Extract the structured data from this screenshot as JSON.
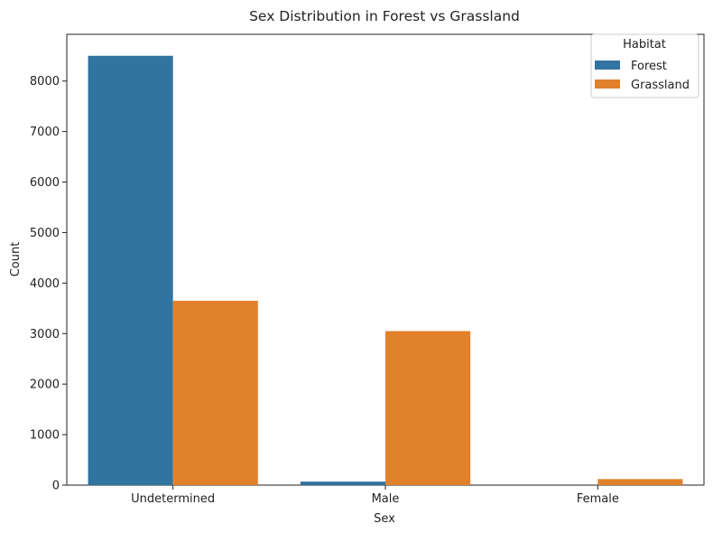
{
  "chart_data": {
    "type": "bar",
    "title": "Sex Distribution in Forest vs Grassland",
    "xlabel": "Sex",
    "ylabel": "Count",
    "categories": [
      "Undetermined",
      "Male",
      "Female"
    ],
    "series": [
      {
        "name": "Forest",
        "values": [
          8500,
          70,
          0
        ],
        "color": "#3274a1"
      },
      {
        "name": "Grassland",
        "values": [
          3650,
          3050,
          120
        ],
        "color": "#e1812c"
      }
    ],
    "ylim": [
      0,
      8925
    ],
    "yticks": [
      0,
      1000,
      2000,
      3000,
      4000,
      5000,
      6000,
      7000,
      8000
    ],
    "grid": false,
    "legend": {
      "title": "Habitat",
      "placement": "top-right"
    }
  }
}
